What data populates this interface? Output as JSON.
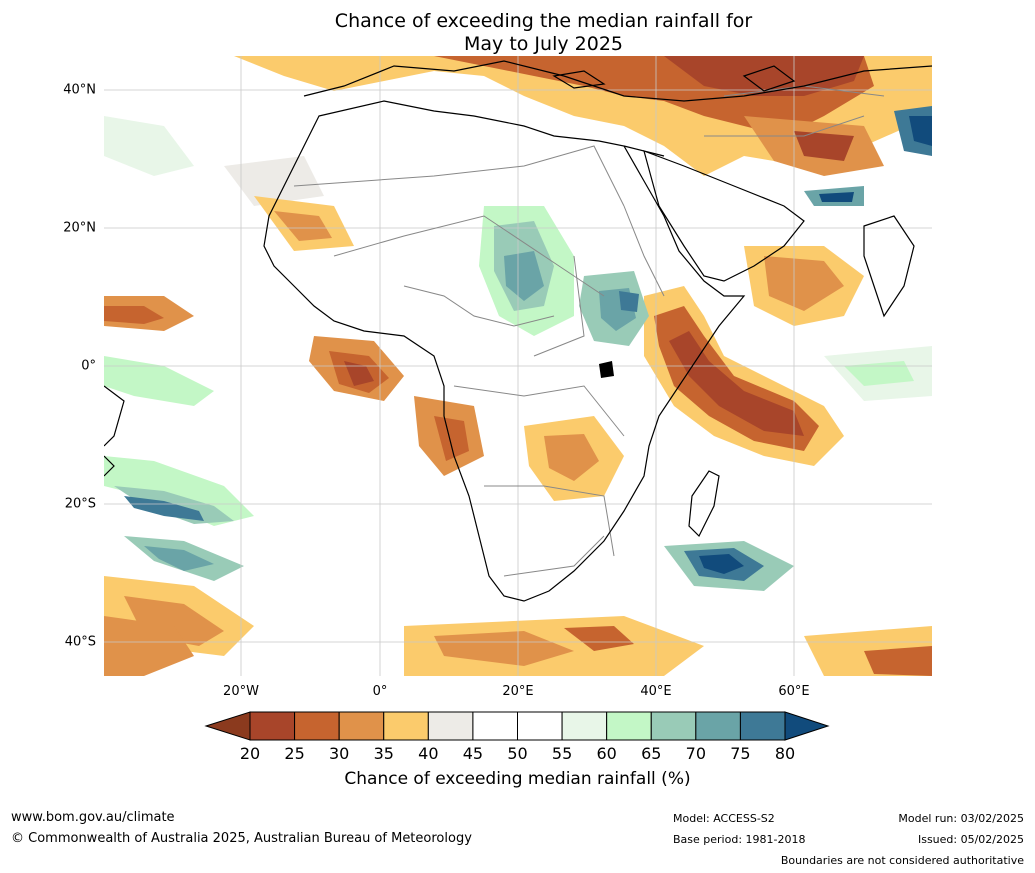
{
  "title": {
    "line1": "Chance of exceeding the median rainfall for",
    "line2": "May to July 2025"
  },
  "map": {
    "lat_labels": [
      "40°N",
      "20°N",
      "0°",
      "20°S",
      "40°S"
    ],
    "lon_labels": [
      "20°W",
      "0°",
      "20°E",
      "40°E",
      "60°E"
    ],
    "background_color": "#ffffff",
    "coast_color": "#000000",
    "border_color": "#888888",
    "grid_color": "#c8c8c8"
  },
  "colorbar": {
    "label": "Chance of exceeding median rainfall (%)",
    "ticks": [
      "20",
      "25",
      "30",
      "35",
      "40",
      "45",
      "50",
      "55",
      "60",
      "65",
      "70",
      "75",
      "80"
    ],
    "low_extend_color": "#8b3a1e",
    "high_extend_color": "#114b7c",
    "colors": [
      "#a8452a",
      "#c6642f",
      "#e0924a",
      "#fbcb6c",
      "#edebe7",
      "#ffffff",
      "#ffffff",
      "#e8f6e8",
      "#c3f7c6",
      "#99cbb7",
      "#6aa4a7",
      "#3e7996"
    ]
  },
  "footer": {
    "website": "www.bom.gov.au/climate",
    "copyright": "© Commonwealth of Australia 2025, Australian Bureau of Meteorology",
    "model": "Model: ACCESS-S2",
    "base_period": "Base period: 1981-2018",
    "model_run": "Model run: 03/02/2025",
    "issued": "Issued: 05/02/2025",
    "disclaimer": "Boundaries are not considered authoritative"
  }
}
